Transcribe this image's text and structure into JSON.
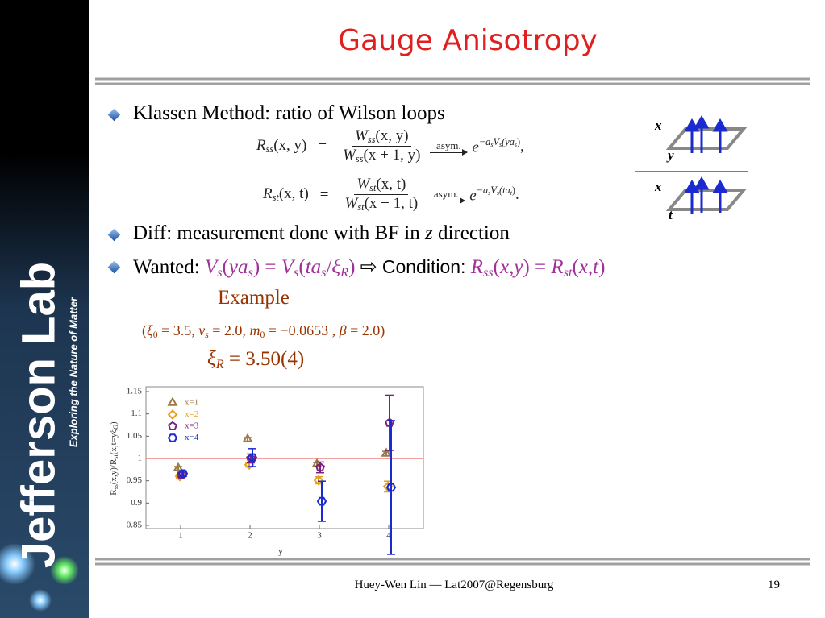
{
  "sidebar": {
    "logo": "Jefferson Lab",
    "tagline": "Exploring the Nature of Matter"
  },
  "title": "Gauge Anisotropy",
  "bullets": [
    {
      "text": "Klassen Method: ratio of Wilson loops"
    },
    {
      "parts": [
        "Diff: measurement done with BF in ",
        "z",
        " direction"
      ]
    },
    {
      "label": "Wanted:",
      "lhs": [
        "V",
        "s",
        "(",
        "ya",
        "s",
        ")"
      ],
      "eq": "=",
      "rhs": [
        "V",
        "s",
        "(",
        "ta",
        "s",
        "/",
        "ξ",
        "R",
        ")"
      ],
      "implies": "⇨",
      "cond": "Condition:",
      "cond_lhs": [
        "R",
        "ss",
        "(",
        "x",
        ",",
        "y",
        ")"
      ],
      "cond_eq": "=",
      "cond_rhs": [
        "R",
        "st",
        "(",
        "x",
        ",",
        "t",
        ")"
      ]
    }
  ],
  "equations": [
    {
      "lhs": [
        "R",
        "ss",
        "(x, y)"
      ],
      "eq": "=",
      "num": [
        "W",
        "ss",
        "(x, y)"
      ],
      "den": [
        "W",
        "ss",
        "(x + 1, y)"
      ],
      "arrow": "asym.",
      "base": "e",
      "exp": [
        "−a",
        "s",
        "V",
        "s",
        "(ya",
        "s",
        ")"
      ],
      "end": ","
    },
    {
      "lhs": [
        "R",
        "st",
        "(x, t)"
      ],
      "eq": "=",
      "num": [
        "W",
        "st",
        "(x, t)"
      ],
      "den": [
        "W",
        "st",
        "(x + 1, t)"
      ],
      "arrow": "asym.",
      "base": "e",
      "exp": [
        "−a",
        "s",
        "V",
        "s",
        "(ta",
        "t",
        ")"
      ],
      "end": "."
    }
  ],
  "diagram": {
    "top": [
      "x",
      "y"
    ],
    "bottom": [
      "x",
      "t"
    ]
  },
  "example": {
    "heading": "Example",
    "params": [
      "(",
      "ξ",
      "0",
      " = 3.5, ",
      "v",
      "s",
      " = 2.0, ",
      "m",
      "0",
      " = −0.0653 , ",
      "β",
      " = 2.0)"
    ],
    "result": [
      "ξ",
      "R",
      " = 3.50(4)"
    ]
  },
  "chart_data": {
    "type": "scatter",
    "x": [
      1,
      2,
      3,
      4
    ],
    "xlim": [
      0.5,
      4.5
    ],
    "xticks": [
      1,
      2,
      3,
      4
    ],
    "ylim": [
      0.85,
      1.15
    ],
    "yticks": [
      0.85,
      0.9,
      0.95,
      1,
      1.05,
      1.1,
      1.15
    ],
    "xlabel": "y",
    "ylabel": [
      "R",
      "ss",
      "(x,y)/R",
      "st",
      "(x,t=yξ",
      "G",
      ")"
    ],
    "hline": 1,
    "hline_color": "#f08080",
    "legend": "upper left",
    "series": [
      {
        "name": "x=1",
        "color": "#9b7a4a",
        "marker": "triangle",
        "values": [
          0.978,
          1.043,
          0.987,
          1.011
        ],
        "errors": [
          0.004,
          0.004,
          0.004,
          0.005
        ]
      },
      {
        "name": "x=2",
        "color": "#e8a020",
        "marker": "diamond",
        "values": [
          0.96,
          0.986,
          0.951,
          0.937
        ],
        "errors": [
          0.004,
          0.005,
          0.008,
          0.012
        ]
      },
      {
        "name": "x=3",
        "color": "#7a2080",
        "marker": "pentagon",
        "values": [
          0.964,
          1.0,
          0.98,
          1.08
        ],
        "errors": [
          0.005,
          0.01,
          0.012,
          0.062
        ]
      },
      {
        "name": "x=4",
        "color": "#1a2ad0",
        "marker": "hexagon",
        "values": [
          0.966,
          1.002,
          0.904,
          0.935
        ],
        "errors": [
          0.006,
          0.02,
          0.045,
          0.15
        ]
      }
    ]
  },
  "footer": {
    "text": "Huey-Wen Lin — Lat2007@Regensburg",
    "page": "19"
  }
}
